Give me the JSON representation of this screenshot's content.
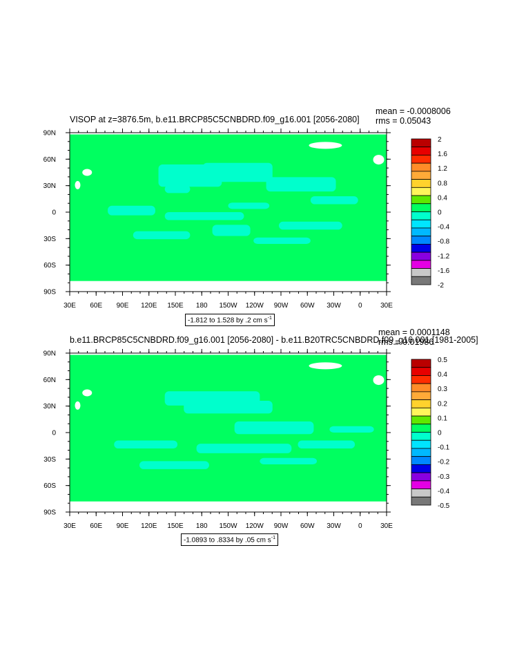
{
  "chart_data": [
    {
      "type": "heatmap",
      "title": "VISOP at z=3876.5m, b.e11.BRCP85C5CNBDRD.f09_g16.001 [2056-2080]",
      "stats": {
        "mean": "mean = -0.0008006",
        "rms": "rms = 0.05043"
      },
      "range_label": "-1.812 to 1.528 by .2 cm s",
      "range_unit_exp": "-1",
      "xticks": [
        "30E",
        "60E",
        "90E",
        "120E",
        "150E",
        "180",
        "150W",
        "120W",
        "90W",
        "60W",
        "30W",
        "0",
        "30E"
      ],
      "yticks": [
        "90N",
        "60N",
        "30N",
        "0",
        "30S",
        "60S",
        "90S"
      ],
      "colorbar_labels": [
        "2",
        "1.6",
        "1.2",
        "0.8",
        "0.4",
        "0",
        "-0.4",
        "-0.8",
        "-1.2",
        "-1.6",
        "-2"
      ],
      "colorbar_range": [
        -2,
        2
      ],
      "dominant_value": 0,
      "colors": [
        "#ba0000",
        "#e70000",
        "#ff2d00",
        "#ff8c28",
        "#ffaa38",
        "#ffd22d",
        "#fff55a",
        "#5fe800",
        "#00ff60",
        "#00ffcc",
        "#00e5ff",
        "#00b9ff",
        "#0088ff",
        "#0000e8",
        "#8a00e0",
        "#e400e4",
        "#c8c8c8",
        "#787878"
      ]
    },
    {
      "type": "heatmap",
      "title": "b.e11.BRCP85C5CNBDRD.f09_g16.001 [2056-2080] - b.e11.B20TRC5CNBDRD.f09_g16.001 [1981-2005]",
      "stats": {
        "mean": "mean = 0.0001148",
        "rms": "rms = 0.01986"
      },
      "range_label": "-1.0893 to .8334 by .05 cm s",
      "range_unit_exp": "-1",
      "xticks": [
        "30E",
        "60E",
        "90E",
        "120E",
        "150E",
        "180",
        "150W",
        "120W",
        "90W",
        "60W",
        "30W",
        "0",
        "30E"
      ],
      "yticks": [
        "90N",
        "60N",
        "30N",
        "0",
        "30S",
        "60S",
        "90S"
      ],
      "colorbar_labels": [
        "0.5",
        "0.4",
        "0.3",
        "0.2",
        "0.1",
        "0",
        "-0.1",
        "-0.2",
        "-0.3",
        "-0.4",
        "-0.5"
      ],
      "colorbar_range": [
        -0.5,
        0.5
      ],
      "dominant_value": 0,
      "colors": [
        "#ba0000",
        "#e70000",
        "#ff2d00",
        "#ff8c28",
        "#ffaa38",
        "#ffd22d",
        "#fff55a",
        "#5fe800",
        "#00ff60",
        "#00ffcc",
        "#00e5ff",
        "#00b9ff",
        "#0088ff",
        "#0000e8",
        "#8a00e0",
        "#e400e4",
        "#c8c8c8",
        "#787878"
      ]
    }
  ]
}
